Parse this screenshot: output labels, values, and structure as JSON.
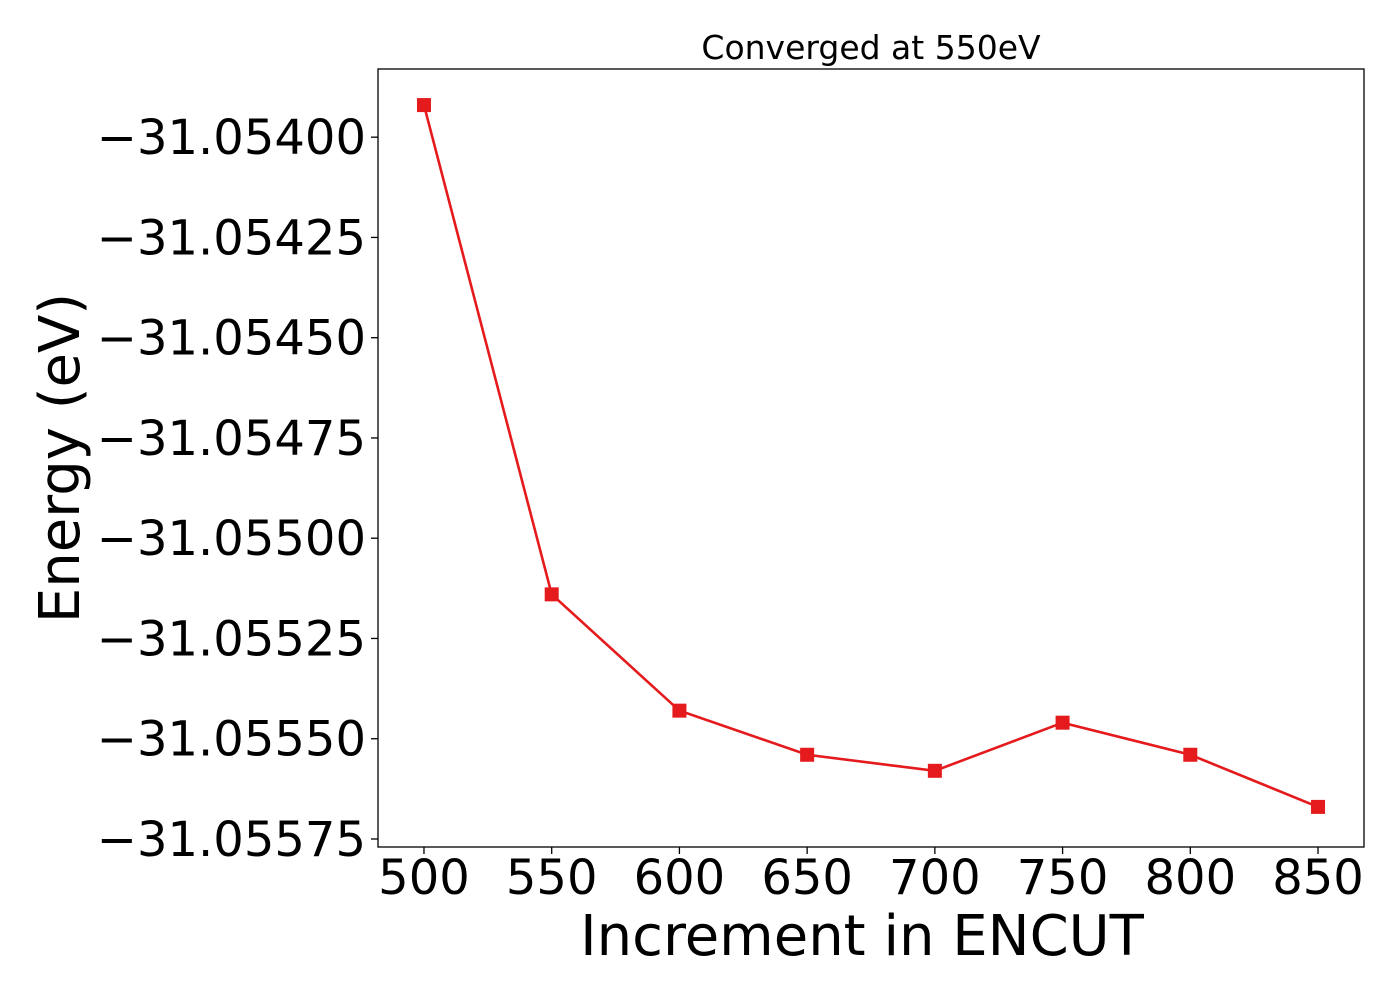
{
  "chart_data": {
    "type": "line",
    "title": "Converged at 550eV",
    "xlabel": "Increment in ENCUT",
    "ylabel": "Energy (eV)",
    "x": [
      500,
      550,
      600,
      650,
      700,
      750,
      800,
      850
    ],
    "series": [
      {
        "values": [
          -31.05392,
          -31.05514,
          -31.05543,
          -31.05554,
          -31.05558,
          -31.05546,
          -31.05554,
          -31.05567
        ],
        "color": "#e41a1c",
        "marker": "square"
      }
    ],
    "xlim": [
      482,
      868
    ],
    "ylim": [
      -31.05577,
      -31.05383
    ],
    "xticks": [
      500,
      550,
      600,
      650,
      700,
      750,
      800,
      850
    ],
    "xtick_labels": [
      "500",
      "550",
      "600",
      "650",
      "700",
      "750",
      "800",
      "850"
    ],
    "yticks": [
      -31.054,
      -31.05425,
      -31.0545,
      -31.05475,
      -31.055,
      -31.05525,
      -31.0555,
      -31.05575
    ],
    "ytick_labels": [
      "−31.05400",
      "−31.05425",
      "−31.05450",
      "−31.05475",
      "−31.05500",
      "−31.05525",
      "−31.05550",
      "−31.05575"
    ],
    "grid": false,
    "legend": false
  }
}
